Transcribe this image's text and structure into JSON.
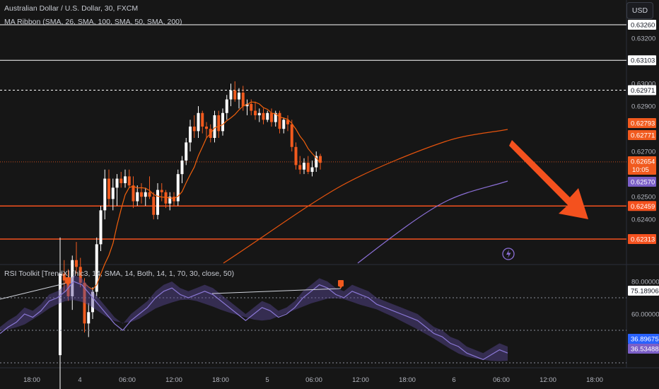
{
  "header": {
    "title": "Australian Dollar / U.S. Dollar, 30, FXCM",
    "indicator": "MA Ribbon (SMA, 26, SMA, 100, SMA, 50, SMA, 200)",
    "currency": "USD"
  },
  "rsi_legend": "RSI Toolkit [TrendX] (hlc3, 14, SMA, 14, Both, 14, 1, 70, 30, close, 50)",
  "colors": {
    "background": "#161616",
    "up": "#ffffff",
    "down": "#f15a1e",
    "ma_fast": "#f2600c",
    "ma_mid": "#e5530d",
    "ma_slow": "#8b6fd6",
    "arrow": "#f4511e",
    "rsi_line": "#8b78d6",
    "rsi_fill": "#5b4a9a"
  },
  "chart_data": [
    {
      "type": "candlestick",
      "title": "Australian Dollar / U.S. Dollar, 30, FXCM",
      "price_ticks": [
        0.632,
        0.63,
        0.629,
        0.627,
        0.625,
        0.624
      ],
      "x_tick_labels": [
        "18:00",
        "4",
        "06:00",
        "12:00",
        "18:00",
        "5",
        "06:00",
        "12:00",
        "18:00",
        "6",
        "06:00",
        "12:00",
        "18:00"
      ],
      "horizontal_levels": [
        {
          "price": 0.6326,
          "label": "0.63260",
          "style": "solid",
          "color": "#ffffff"
        },
        {
          "price": 0.63103,
          "label": "0.63103",
          "style": "solid",
          "color": "#ffffff"
        },
        {
          "price": 0.62971,
          "label": "0.62971",
          "style": "dashed",
          "color": "#ffffff"
        },
        {
          "price": 0.62459,
          "label": "0.62459",
          "style": "solid",
          "color": "#f4511e"
        },
        {
          "price": 0.62313,
          "label": "0.62313",
          "style": "solid",
          "color": "#f4511e"
        }
      ],
      "price_tags": [
        {
          "label": "0.62793",
          "price": 0.62793,
          "bg": "#f15a1e",
          "fg": "#ffffff"
        },
        {
          "label": "0.62771",
          "price": 0.62771,
          "bg": "#f15a1e",
          "fg": "#ffffff"
        },
        {
          "label": "0.62654",
          "sub": "10:05",
          "price": 0.62654,
          "bg": "#f15a1e",
          "fg": "#ffffff"
        },
        {
          "label": "0.62570",
          "price": 0.6257,
          "bg": "#7b5fc7",
          "fg": "#ffffff"
        }
      ],
      "candles": [
        [
          0.618,
          0.6232,
          0.6164,
          0.6216
        ],
        [
          0.6216,
          0.6222,
          0.6208,
          0.6213
        ],
        [
          0.6213,
          0.6218,
          0.6204,
          0.6206
        ],
        [
          0.6206,
          0.6224,
          0.62,
          0.6222
        ],
        [
          0.6222,
          0.623,
          0.6216,
          0.6219
        ],
        [
          0.6219,
          0.6223,
          0.621,
          0.6212
        ],
        [
          0.6212,
          0.6214,
          0.619,
          0.6194
        ],
        [
          0.6194,
          0.6203,
          0.6188,
          0.6199
        ],
        [
          0.6199,
          0.621,
          0.6196,
          0.6208
        ],
        [
          0.6208,
          0.6232,
          0.6206,
          0.6229
        ],
        [
          0.6229,
          0.6246,
          0.6226,
          0.6244
        ],
        [
          0.6244,
          0.6262,
          0.624,
          0.6258
        ],
        [
          0.6258,
          0.6262,
          0.6246,
          0.6249
        ],
        [
          0.6249,
          0.6258,
          0.6244,
          0.6254
        ],
        [
          0.6254,
          0.626,
          0.6246,
          0.6258
        ],
        [
          0.6258,
          0.6261,
          0.6254,
          0.6256
        ],
        [
          0.6256,
          0.6262,
          0.6254,
          0.6259
        ],
        [
          0.6259,
          0.6262,
          0.6254,
          0.6255
        ],
        [
          0.6255,
          0.6259,
          0.6245,
          0.6248
        ],
        [
          0.6248,
          0.6255,
          0.6246,
          0.6252
        ],
        [
          0.6252,
          0.6256,
          0.6247,
          0.625
        ],
        [
          0.625,
          0.6254,
          0.6246,
          0.6252
        ],
        [
          0.6252,
          0.6259,
          0.6249,
          0.625
        ],
        [
          0.625,
          0.6252,
          0.624,
          0.6242
        ],
        [
          0.6242,
          0.6256,
          0.624,
          0.6253
        ],
        [
          0.6253,
          0.6256,
          0.6248,
          0.6252
        ],
        [
          0.6252,
          0.6253,
          0.6245,
          0.6247
        ],
        [
          0.6247,
          0.6252,
          0.6244,
          0.625
        ],
        [
          0.625,
          0.6252,
          0.6246,
          0.6248
        ],
        [
          0.6248,
          0.6262,
          0.6246,
          0.626
        ],
        [
          0.626,
          0.6268,
          0.6256,
          0.6266
        ],
        [
          0.6266,
          0.6276,
          0.6264,
          0.6274
        ],
        [
          0.6274,
          0.6284,
          0.627,
          0.6281
        ],
        [
          0.6281,
          0.6286,
          0.6276,
          0.6279
        ],
        [
          0.6279,
          0.629,
          0.6276,
          0.6287
        ],
        [
          0.6287,
          0.6288,
          0.6278,
          0.6281
        ],
        [
          0.6281,
          0.6283,
          0.6276,
          0.628
        ],
        [
          0.628,
          0.6282,
          0.6274,
          0.6276
        ],
        [
          0.6276,
          0.6288,
          0.6274,
          0.6286
        ],
        [
          0.6286,
          0.6288,
          0.6276,
          0.6279
        ],
        [
          0.6279,
          0.6289,
          0.6277,
          0.6287
        ],
        [
          0.6287,
          0.6295,
          0.6284,
          0.6293
        ],
        [
          0.6293,
          0.63,
          0.629,
          0.6297
        ],
        [
          0.6297,
          0.6301,
          0.6292,
          0.6293
        ],
        [
          0.6293,
          0.6298,
          0.6289,
          0.6296
        ],
        [
          0.6296,
          0.6299,
          0.6288,
          0.629
        ],
        [
          0.629,
          0.6293,
          0.6286,
          0.6291
        ],
        [
          0.6291,
          0.6293,
          0.6286,
          0.6288
        ],
        [
          0.6288,
          0.6292,
          0.6284,
          0.6286
        ],
        [
          0.6286,
          0.6289,
          0.6283,
          0.6287
        ],
        [
          0.6287,
          0.6289,
          0.6282,
          0.6284
        ],
        [
          0.6284,
          0.6288,
          0.6283,
          0.6287
        ],
        [
          0.6287,
          0.6289,
          0.6281,
          0.6283
        ],
        [
          0.6283,
          0.6288,
          0.6281,
          0.6287
        ],
        [
          0.6287,
          0.6288,
          0.6278,
          0.628
        ],
        [
          0.628,
          0.6285,
          0.6278,
          0.6284
        ],
        [
          0.6284,
          0.6286,
          0.6279,
          0.6282
        ],
        [
          0.6282,
          0.6284,
          0.627,
          0.6272
        ],
        [
          0.6272,
          0.6274,
          0.6262,
          0.6264
        ],
        [
          0.6264,
          0.6268,
          0.626,
          0.6262
        ],
        [
          0.6262,
          0.6267,
          0.626,
          0.6265
        ],
        [
          0.6265,
          0.6268,
          0.626,
          0.6261
        ],
        [
          0.6261,
          0.6266,
          0.6259,
          0.6263
        ],
        [
          0.6263,
          0.627,
          0.6261,
          0.6268
        ],
        [
          0.6268,
          0.6269,
          0.6262,
          0.6265
        ]
      ],
      "moving_averages": [
        {
          "name": "SMA 26",
          "color": "#f2600c"
        },
        {
          "name": "SMA 50",
          "color": "#e5530d"
        },
        {
          "name": "SMA 100",
          "color": "#8b6fd6"
        }
      ]
    },
    {
      "type": "line",
      "title": "RSI Toolkit [TrendX] (hlc3, 14, SMA, 14, Both, 14, 1, 70, 30, close, 50)",
      "y_ticks": [
        80.0,
        60.0
      ],
      "y_tick_labels": [
        "80.00000",
        "60.00000"
      ],
      "levels": [
        70,
        50,
        30
      ],
      "tags": [
        {
          "label": "75.18906",
          "value": 75.18906,
          "bg": "#ffffff",
          "fg": "#131722"
        },
        {
          "label": "36.89675",
          "value": 36.89675,
          "bg": "#2962ff",
          "fg": "#ffffff"
        },
        {
          "label": "36.53488",
          "value": 36.53488,
          "bg": "#7b5fc7",
          "fg": "#ffffff"
        }
      ],
      "series": [
        {
          "values": [
            48,
            52,
            55,
            60,
            58,
            62,
            68,
            70,
            74,
            80,
            78,
            72,
            66,
            60,
            54,
            50,
            56,
            60,
            64,
            70,
            74,
            76,
            72,
            70,
            72,
            74,
            72,
            68,
            64,
            60,
            56,
            60,
            64,
            62,
            58,
            60,
            64,
            70,
            74,
            78,
            76,
            72,
            70,
            74,
            72,
            70,
            66,
            64,
            62,
            60,
            58,
            56,
            52,
            48,
            46,
            42,
            40,
            36,
            34,
            32,
            35,
            38,
            36
          ]
        }
      ]
    }
  ]
}
